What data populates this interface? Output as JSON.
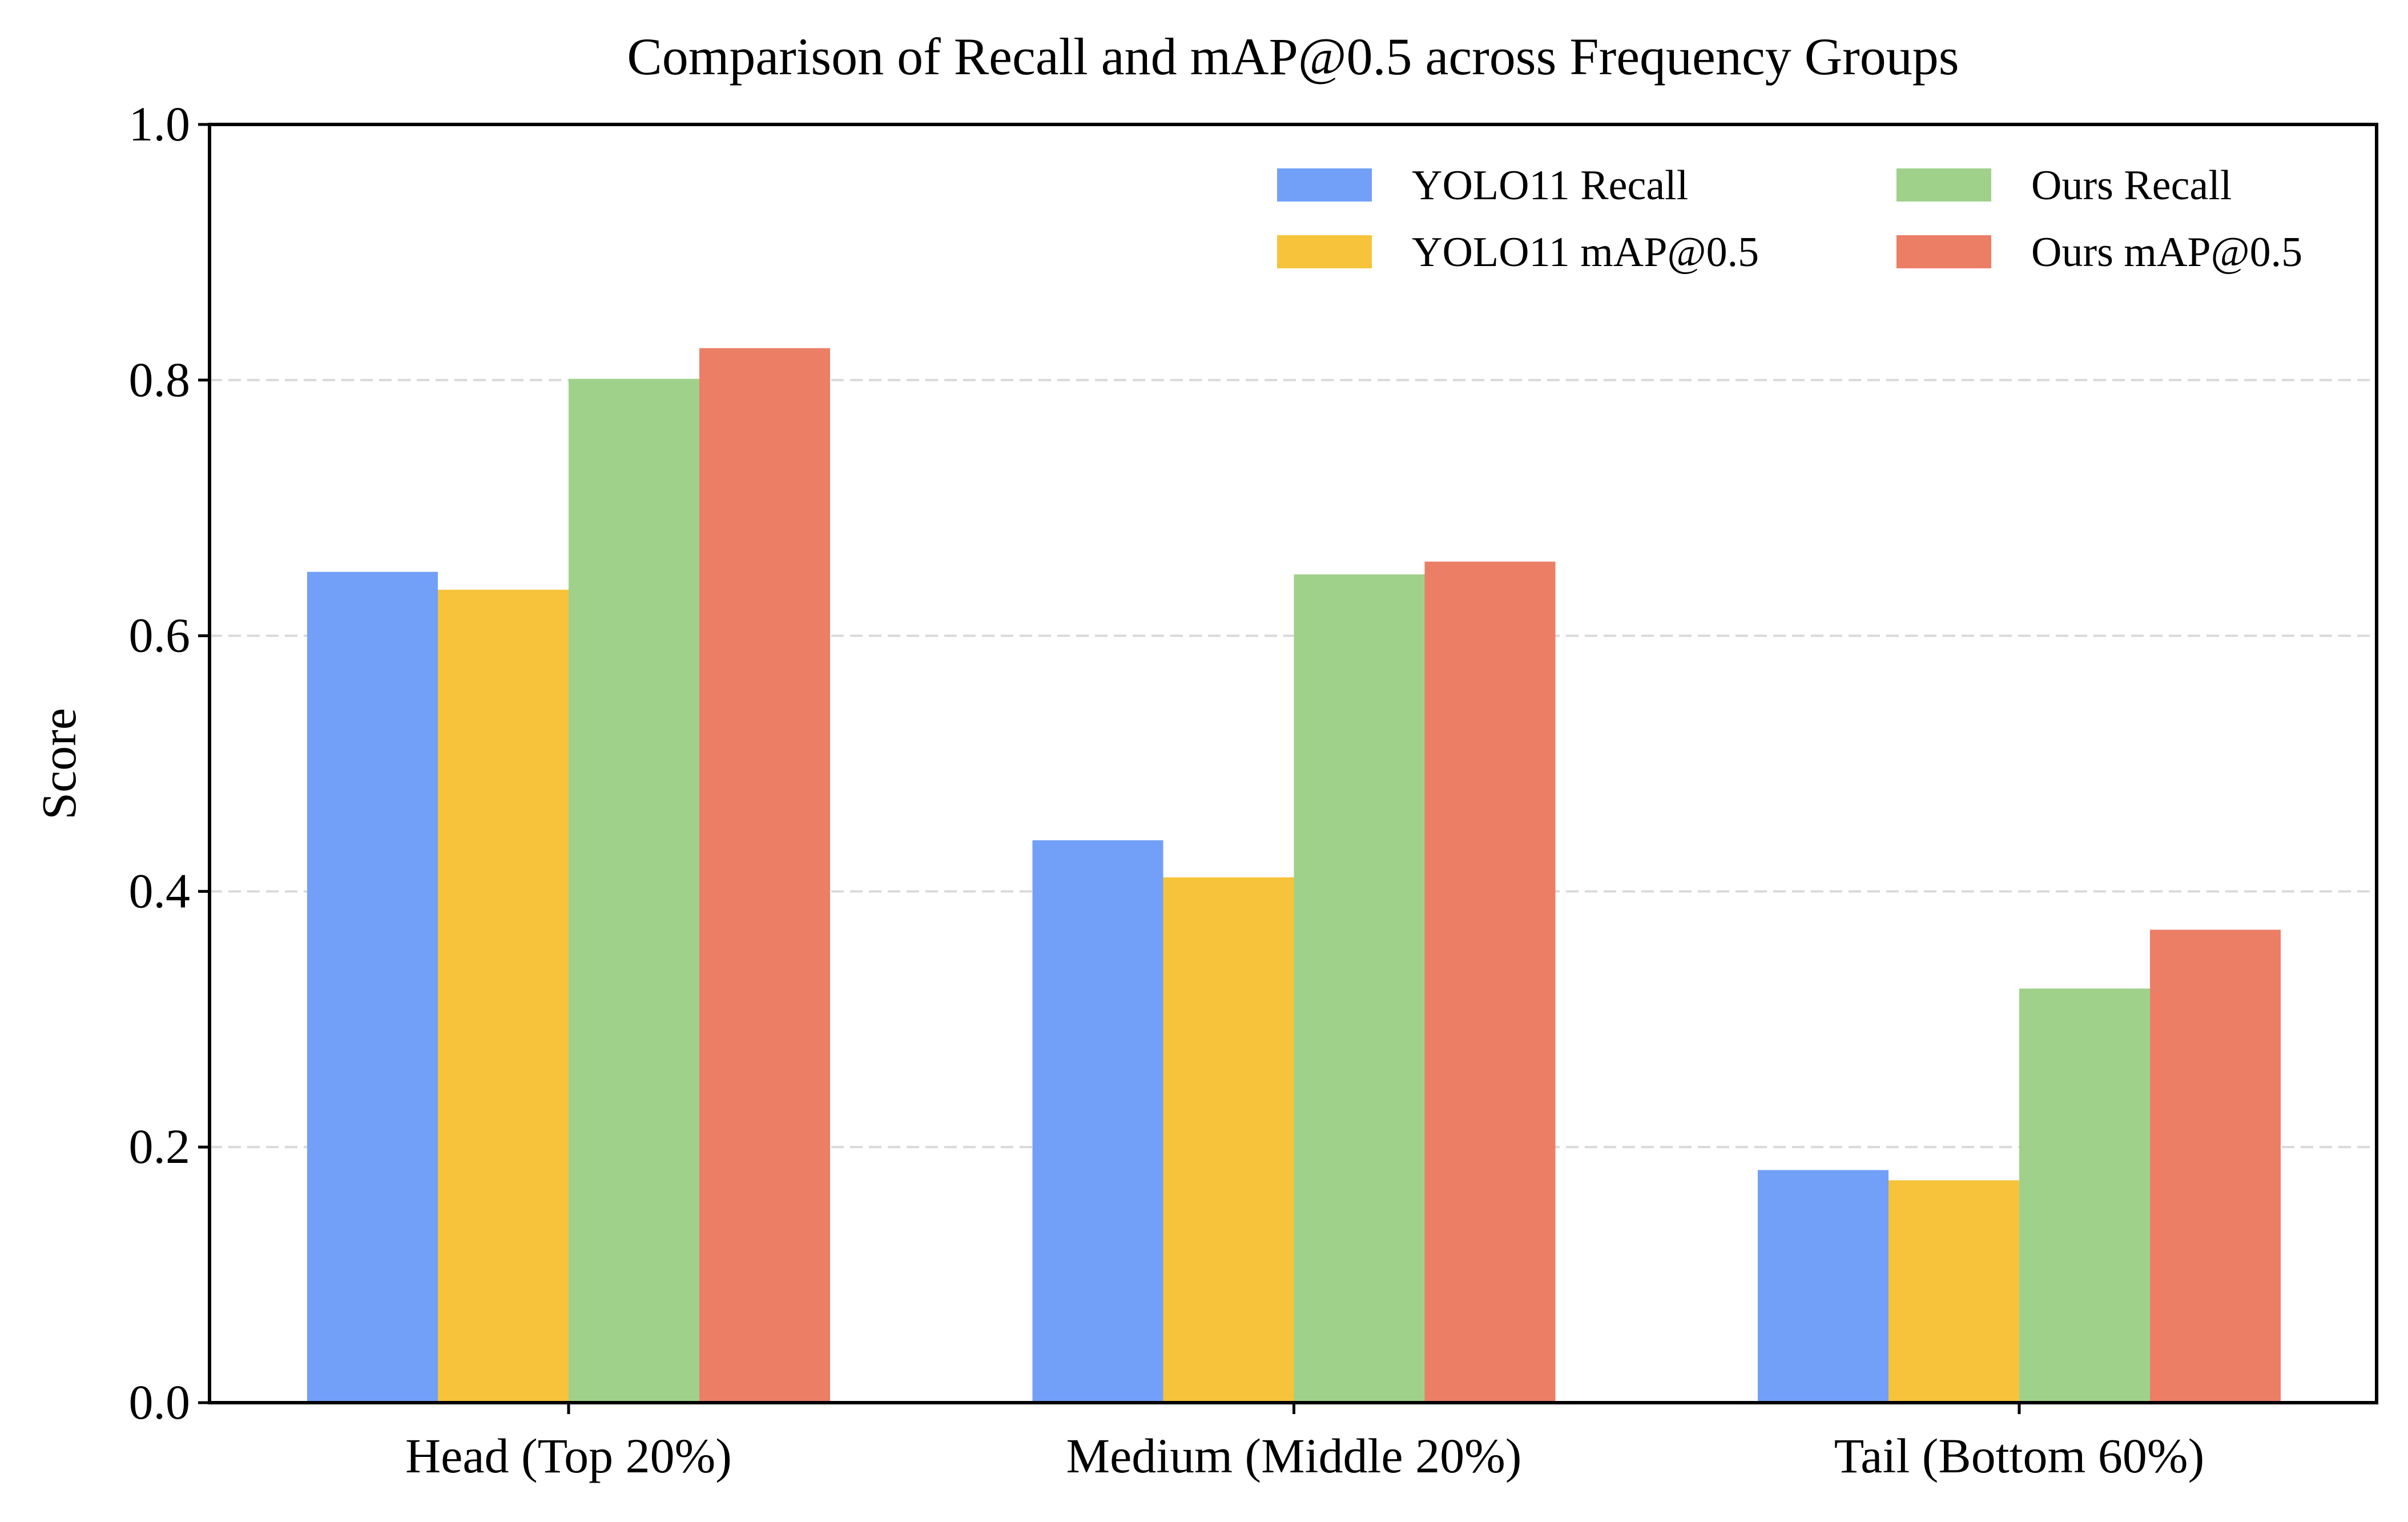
{
  "chart_data": {
    "type": "bar",
    "title": "Comparison of Recall and mAP@0.5 across Frequency Groups",
    "xlabel": "",
    "ylabel": "Score",
    "ylim": [
      0,
      1.0
    ],
    "yticks": [
      "0.0",
      "0.2",
      "0.4",
      "0.6",
      "0.8",
      "1.0"
    ],
    "grid": "horizontal dashed",
    "legend_position": "top-right",
    "categories": [
      "Head (Top 20%)",
      "Medium (Middle 20%)",
      "Tail (Bottom 60%)"
    ],
    "series": [
      {
        "name": "YOLO11 Recall",
        "color": "#729ff8",
        "values": [
          0.65,
          0.44,
          0.182
        ]
      },
      {
        "name": "YOLO11 mAP@0.5",
        "color": "#f6c33a",
        "values": [
          0.636,
          0.411,
          0.174
        ]
      },
      {
        "name": "Ours Recall",
        "color": "#a0d18a",
        "values": [
          0.801,
          0.648,
          0.324
        ]
      },
      {
        "name": "Ours mAP@0.5",
        "color": "#ec7e66",
        "values": [
          0.825,
          0.658,
          0.37
        ]
      }
    ]
  }
}
